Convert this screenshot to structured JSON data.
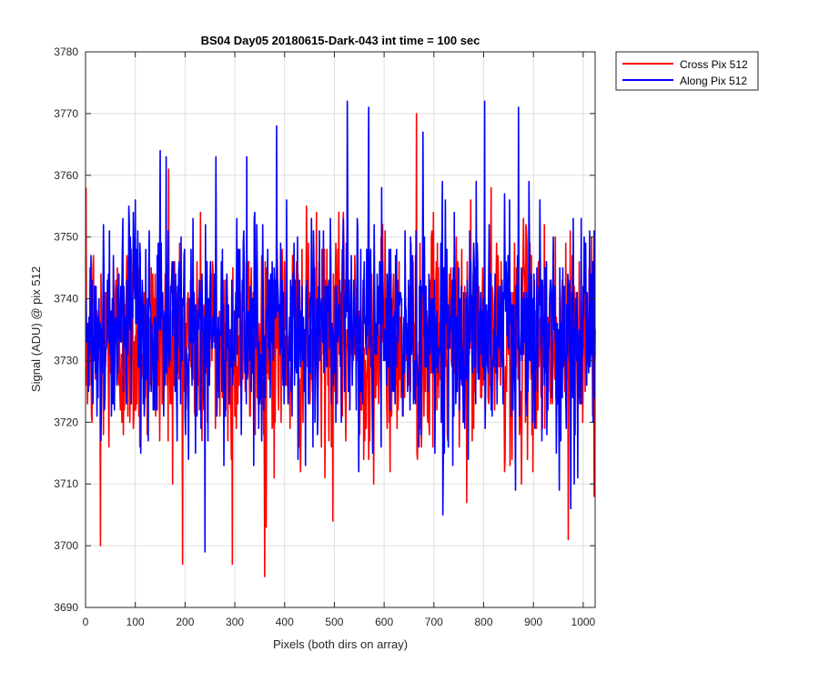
{
  "chart_data": {
    "type": "line",
    "title": "BS04 Day05 20180615-Dark-043 int time = 100 sec",
    "xlabel": "Pixels (both dirs on array)",
    "ylabel": "Signal (ADU) @ pix 512",
    "xlim": [
      0,
      1024
    ],
    "ylim": [
      3690,
      3780
    ],
    "xticks": [
      0,
      100,
      200,
      300,
      400,
      500,
      600,
      700,
      800,
      900,
      1000
    ],
    "yticks": [
      3690,
      3700,
      3710,
      3720,
      3730,
      3740,
      3750,
      3760,
      3770,
      3780
    ],
    "grid": true,
    "legend_position": "outside-top-right",
    "series": [
      {
        "name": "Cross Pix 512",
        "color": "#ff0000",
        "x_start": 1,
        "x_step": 1,
        "n_points": 1024,
        "mean_approx": 3733,
        "std_approx": 9,
        "notable_points": [
          {
            "x": 30,
            "y": 3700
          },
          {
            "x": 167,
            "y": 3761
          },
          {
            "x": 295,
            "y": 3697
          },
          {
            "x": 363,
            "y": 3703
          },
          {
            "x": 497,
            "y": 3704
          },
          {
            "x": 665,
            "y": 3770
          },
          {
            "x": 970,
            "y": 3701
          }
        ]
      },
      {
        "name": "Along Pix 512",
        "color": "#0000ff",
        "x_start": 1,
        "x_step": 1,
        "n_points": 1024,
        "mean_approx": 3735,
        "std_approx": 9,
        "notable_points": [
          {
            "x": 150,
            "y": 3764
          },
          {
            "x": 240,
            "y": 3699
          },
          {
            "x": 262,
            "y": 3763
          },
          {
            "x": 384,
            "y": 3768
          },
          {
            "x": 526,
            "y": 3772
          },
          {
            "x": 569,
            "y": 3771
          },
          {
            "x": 802,
            "y": 3772
          },
          {
            "x": 870,
            "y": 3771
          },
          {
            "x": 975,
            "y": 3706
          }
        ]
      }
    ]
  }
}
